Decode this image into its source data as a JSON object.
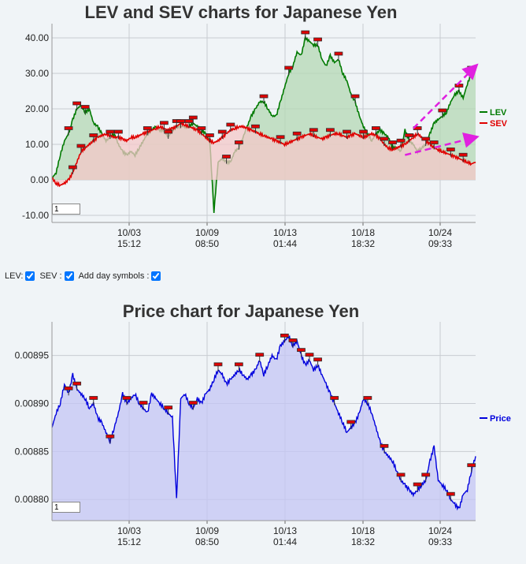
{
  "chart_data": [
    {
      "type": "line",
      "title": "LEV and SEV charts for Japanese Yen",
      "ylim": [
        -12,
        44
      ],
      "yticks": [
        "40.00",
        "30.00",
        "20.00",
        "10.00",
        "0.00",
        "-10.00"
      ],
      "ytick_values": [
        40,
        30,
        20,
        10,
        0,
        -10
      ],
      "xticks": [
        {
          "date": "10/03",
          "time": "15:12"
        },
        {
          "date": "10/09",
          "time": "08:50"
        },
        {
          "date": "10/13",
          "time": "01:44"
        },
        {
          "date": "10/18",
          "time": "18:32"
        },
        {
          "date": "10/24",
          "time": "09:33"
        }
      ],
      "legend_position": "right",
      "series": [
        {
          "name": "LEV",
          "color": "#007a00",
          "values": [
            0.5,
            2,
            7,
            11,
            13,
            17,
            20,
            21,
            19,
            20,
            16,
            15,
            13,
            11,
            12,
            13,
            10,
            8,
            7,
            8,
            7,
            9,
            11,
            13,
            14,
            15,
            14,
            14,
            12,
            14,
            15,
            15,
            15,
            15,
            16,
            15,
            14,
            13,
            11,
            -9,
            5,
            6,
            5,
            5,
            8,
            9,
            12,
            15,
            18,
            20,
            22,
            22,
            20,
            18,
            18,
            22,
            26,
            30,
            32,
            36,
            35,
            40,
            39,
            38,
            38,
            34,
            32,
            35,
            33,
            34,
            30,
            28,
            24,
            22,
            18,
            15,
            13,
            11,
            13,
            14,
            13,
            12,
            9,
            9,
            8,
            14,
            11,
            10,
            8,
            9,
            10,
            13,
            16,
            17,
            18,
            19,
            22,
            24,
            25,
            23,
            27,
            30,
            31
          ]
        },
        {
          "name": "SEV",
          "color": "#e00000",
          "values": [
            0.5,
            -1,
            -1.5,
            -1,
            0,
            2,
            5,
            8,
            9,
            10,
            11,
            12,
            12.5,
            13,
            12.5,
            12,
            12,
            11.5,
            11,
            12,
            12,
            12.5,
            13,
            13.5,
            14,
            14.5,
            15,
            14.5,
            14,
            14.5,
            15,
            16,
            15.5,
            15,
            14.5,
            14,
            13,
            12,
            11,
            10.5,
            11,
            12,
            13,
            14,
            14.5,
            15,
            15,
            14.5,
            14,
            13.5,
            13,
            12.5,
            12,
            11.5,
            11,
            10.5,
            10,
            10.5,
            11,
            11.5,
            12,
            12.5,
            13,
            12.5,
            12,
            11.5,
            12,
            12.5,
            13,
            13,
            12.5,
            12,
            12.5,
            13,
            12.5,
            12,
            12.5,
            13,
            12.5,
            11.5,
            10,
            9,
            8.5,
            9,
            9.5,
            10,
            11,
            12,
            13,
            12,
            11,
            10,
            9,
            8.5,
            8,
            7.5,
            7,
            6.5,
            6,
            5.5,
            5,
            4.5,
            5
          ]
        }
      ],
      "day_symbols": [
        4,
        5,
        6,
        7,
        8,
        10,
        14,
        16,
        23,
        27,
        28,
        30,
        31,
        33,
        34,
        36,
        38,
        41,
        42,
        43,
        45,
        49,
        51,
        55,
        57,
        59,
        61,
        63,
        64,
        67,
        69,
        71,
        73,
        75,
        78,
        80,
        82,
        84,
        86,
        88,
        90,
        92,
        94,
        96,
        98,
        99,
        101
      ],
      "annotation_arrows": [
        {
          "from": [
            87,
            14.5
          ],
          "to": [
            102,
            32
          ]
        },
        {
          "from": [
            85,
            7
          ],
          "to": [
            102,
            12
          ]
        }
      ]
    },
    {
      "type": "area",
      "title": "Price chart for Japanese Yen",
      "ylim": [
        0.008778,
        0.008985
      ],
      "yticks": [
        "0.00895",
        "0.00890",
        "0.00885",
        "0.00880"
      ],
      "ytick_values": [
        0.00895,
        0.0089,
        0.00885,
        0.0088
      ],
      "xticks": [
        {
          "date": "10/03",
          "time": "15:12"
        },
        {
          "date": "10/09",
          "time": "08:50"
        },
        {
          "date": "10/13",
          "time": "01:44"
        },
        {
          "date": "10/18",
          "time": "18:32"
        },
        {
          "date": "10/24",
          "time": "09:33"
        }
      ],
      "legend_position": "right",
      "series": [
        {
          "name": "Price",
          "color": "#0000dd",
          "values": [
            0.008875,
            0.00889,
            0.0089,
            0.00892,
            0.00891,
            0.00893,
            0.008915,
            0.00891,
            0.008905,
            0.008895,
            0.0089,
            0.008885,
            0.00888,
            0.00887,
            0.00886,
            0.008875,
            0.00889,
            0.00891,
            0.0089,
            0.008905,
            0.00891,
            0.0089,
            0.008895,
            0.00889,
            0.00891,
            0.008905,
            0.0089,
            0.008895,
            0.00889,
            0.008885,
            0.0088,
            0.008905,
            0.00891,
            0.0089,
            0.008895,
            0.008905,
            0.0089,
            0.00891,
            0.008915,
            0.008925,
            0.008935,
            0.00893,
            0.00892,
            0.008925,
            0.00893,
            0.008935,
            0.00893,
            0.008925,
            0.00893,
            0.008935,
            0.008945,
            0.00893,
            0.00894,
            0.00895,
            0.008945,
            0.00896,
            0.008965,
            0.00897,
            0.00896,
            0.008965,
            0.00895,
            0.00894,
            0.008945,
            0.008935,
            0.00894,
            0.00893,
            0.00892,
            0.00891,
            0.0089,
            0.00889,
            0.00888,
            0.00887,
            0.008875,
            0.00888,
            0.00889,
            0.008905,
            0.0089,
            0.00889,
            0.008875,
            0.00886,
            0.00885,
            0.008845,
            0.00884,
            0.00883,
            0.00882,
            0.008815,
            0.00881,
            0.008805,
            0.00881,
            0.008815,
            0.00882,
            0.00884,
            0.008855,
            0.00882,
            0.008815,
            0.00881,
            0.0088,
            0.008795,
            0.00879,
            0.008805,
            0.00881,
            0.00883,
            0.008845
          ]
        }
      ],
      "day_symbols": [
        4,
        6,
        10,
        14,
        18,
        22,
        28,
        34,
        40,
        45,
        50,
        56,
        58,
        60,
        62,
        64,
        68,
        72,
        76,
        80,
        84,
        88,
        90,
        96,
        101
      ]
    }
  ],
  "controls": {
    "lev_label": "LEV:",
    "sev_label": "SEV :",
    "day_label": "Add day symbols :",
    "lev_checked": true,
    "sev_checked": true,
    "day_checked": true,
    "index_input_value": "1"
  },
  "colors": {
    "lev_fill": "#b4d8b4",
    "sev_fill": "#f4c8c8",
    "price_fill": "#c4c6f4",
    "arrow": "#e020e0",
    "marker": "#e00000"
  }
}
